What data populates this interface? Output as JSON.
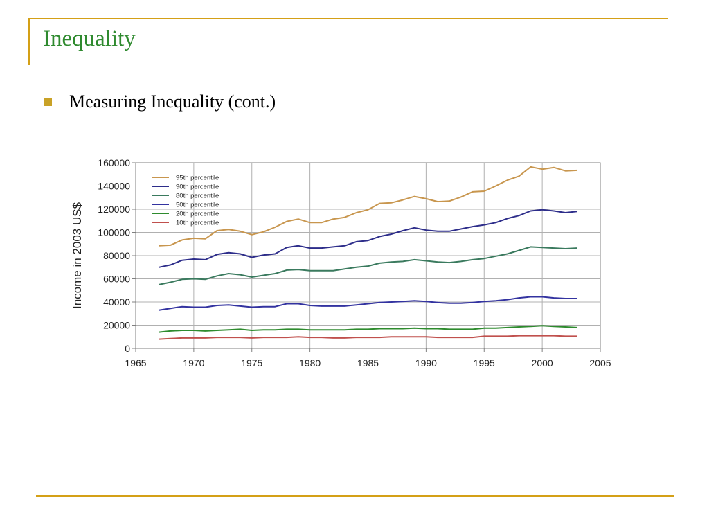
{
  "slide": {
    "title": "Inequality",
    "bullet": "Measuring Inequality (cont.)"
  },
  "colors": {
    "accent_line": "#d4a017",
    "title_text": "#2f8a2f",
    "bullet_marker": "#c9a227"
  },
  "chart_data": {
    "type": "line",
    "title": "",
    "xlabel": "",
    "ylabel": "Income in 2003 US$",
    "xlim": [
      1965,
      2005
    ],
    "ylim": [
      0,
      160000
    ],
    "xticks": [
      1965,
      1970,
      1975,
      1980,
      1985,
      1990,
      1995,
      2000,
      2005
    ],
    "yticks": [
      0,
      20000,
      40000,
      60000,
      80000,
      100000,
      120000,
      140000,
      160000
    ],
    "grid": true,
    "legend_position": "top-left",
    "x": [
      1967,
      1968,
      1969,
      1970,
      1971,
      1972,
      1973,
      1974,
      1975,
      1976,
      1977,
      1978,
      1979,
      1980,
      1981,
      1982,
      1983,
      1984,
      1985,
      1986,
      1987,
      1988,
      1989,
      1990,
      1991,
      1992,
      1993,
      1994,
      1995,
      1996,
      1997,
      1998,
      1999,
      2000,
      2001,
      2002,
      2003
    ],
    "series": [
      {
        "name": "95th percentile",
        "color": "#c8964e",
        "values": [
          88500,
          89000,
          93500,
          95000,
          94500,
          101500,
          102500,
          101000,
          98000,
          100500,
          104500,
          109500,
          111500,
          108500,
          108500,
          111500,
          113000,
          117000,
          119500,
          125000,
          125500,
          128000,
          131000,
          129000,
          126500,
          127000,
          130500,
          135000,
          135500,
          140000,
          145000,
          148500,
          156500,
          154500,
          156000,
          153000,
          153500
        ]
      },
      {
        "name": "90th percentile",
        "color": "#2d2d8a",
        "values": [
          70000,
          72000,
          76000,
          77000,
          76500,
          81000,
          82500,
          81500,
          78500,
          80500,
          81500,
          87000,
          88500,
          86500,
          86500,
          87500,
          88500,
          92000,
          93000,
          96500,
          98500,
          101500,
          104000,
          102000,
          101000,
          101000,
          103000,
          105000,
          106500,
          108500,
          112000,
          114500,
          118500,
          119500,
          118500,
          117000,
          118000
        ]
      },
      {
        "name": "80th percentile",
        "color": "#3a7a5e",
        "values": [
          55000,
          57000,
          59500,
          60000,
          59500,
          62500,
          64500,
          63500,
          61500,
          63000,
          64500,
          67500,
          68000,
          67000,
          67000,
          67000,
          68500,
          70000,
          71000,
          73500,
          74500,
          75000,
          76500,
          75500,
          74500,
          74000,
          75000,
          76500,
          77500,
          79500,
          81500,
          84500,
          87500,
          87000,
          86500,
          86000,
          86500
        ]
      },
      {
        "name": "50th percentile",
        "color": "#3333a0",
        "values": [
          33000,
          34500,
          36000,
          35500,
          35500,
          37000,
          37500,
          36500,
          35500,
          36000,
          36000,
          38500,
          38500,
          37000,
          36500,
          36500,
          36500,
          37500,
          38500,
          39500,
          40000,
          40500,
          41000,
          40500,
          39500,
          39000,
          39000,
          39500,
          40500,
          41000,
          42000,
          43500,
          44500,
          44500,
          43500,
          43000,
          43000
        ]
      },
      {
        "name": "20th percentile",
        "color": "#2e8b2e",
        "values": [
          14000,
          15000,
          15500,
          15500,
          15000,
          15500,
          16000,
          16500,
          15500,
          16000,
          16000,
          16500,
          16500,
          16000,
          16000,
          16000,
          16000,
          16500,
          16500,
          17000,
          17000,
          17000,
          17500,
          17000,
          17000,
          16500,
          16500,
          16500,
          17500,
          17500,
          18000,
          18500,
          19000,
          19500,
          19000,
          18500,
          18000
        ]
      },
      {
        "name": "10th percentile",
        "color": "#c0504d",
        "values": [
          8000,
          8500,
          9000,
          9000,
          9000,
          9500,
          9500,
          9500,
          9000,
          9500,
          9500,
          9500,
          10000,
          9500,
          9500,
          9000,
          9000,
          9500,
          9500,
          9500,
          10000,
          10000,
          10000,
          10000,
          9500,
          9500,
          9500,
          9500,
          10500,
          10500,
          10500,
          11000,
          11000,
          11000,
          11000,
          10500,
          10500
        ]
      }
    ]
  }
}
